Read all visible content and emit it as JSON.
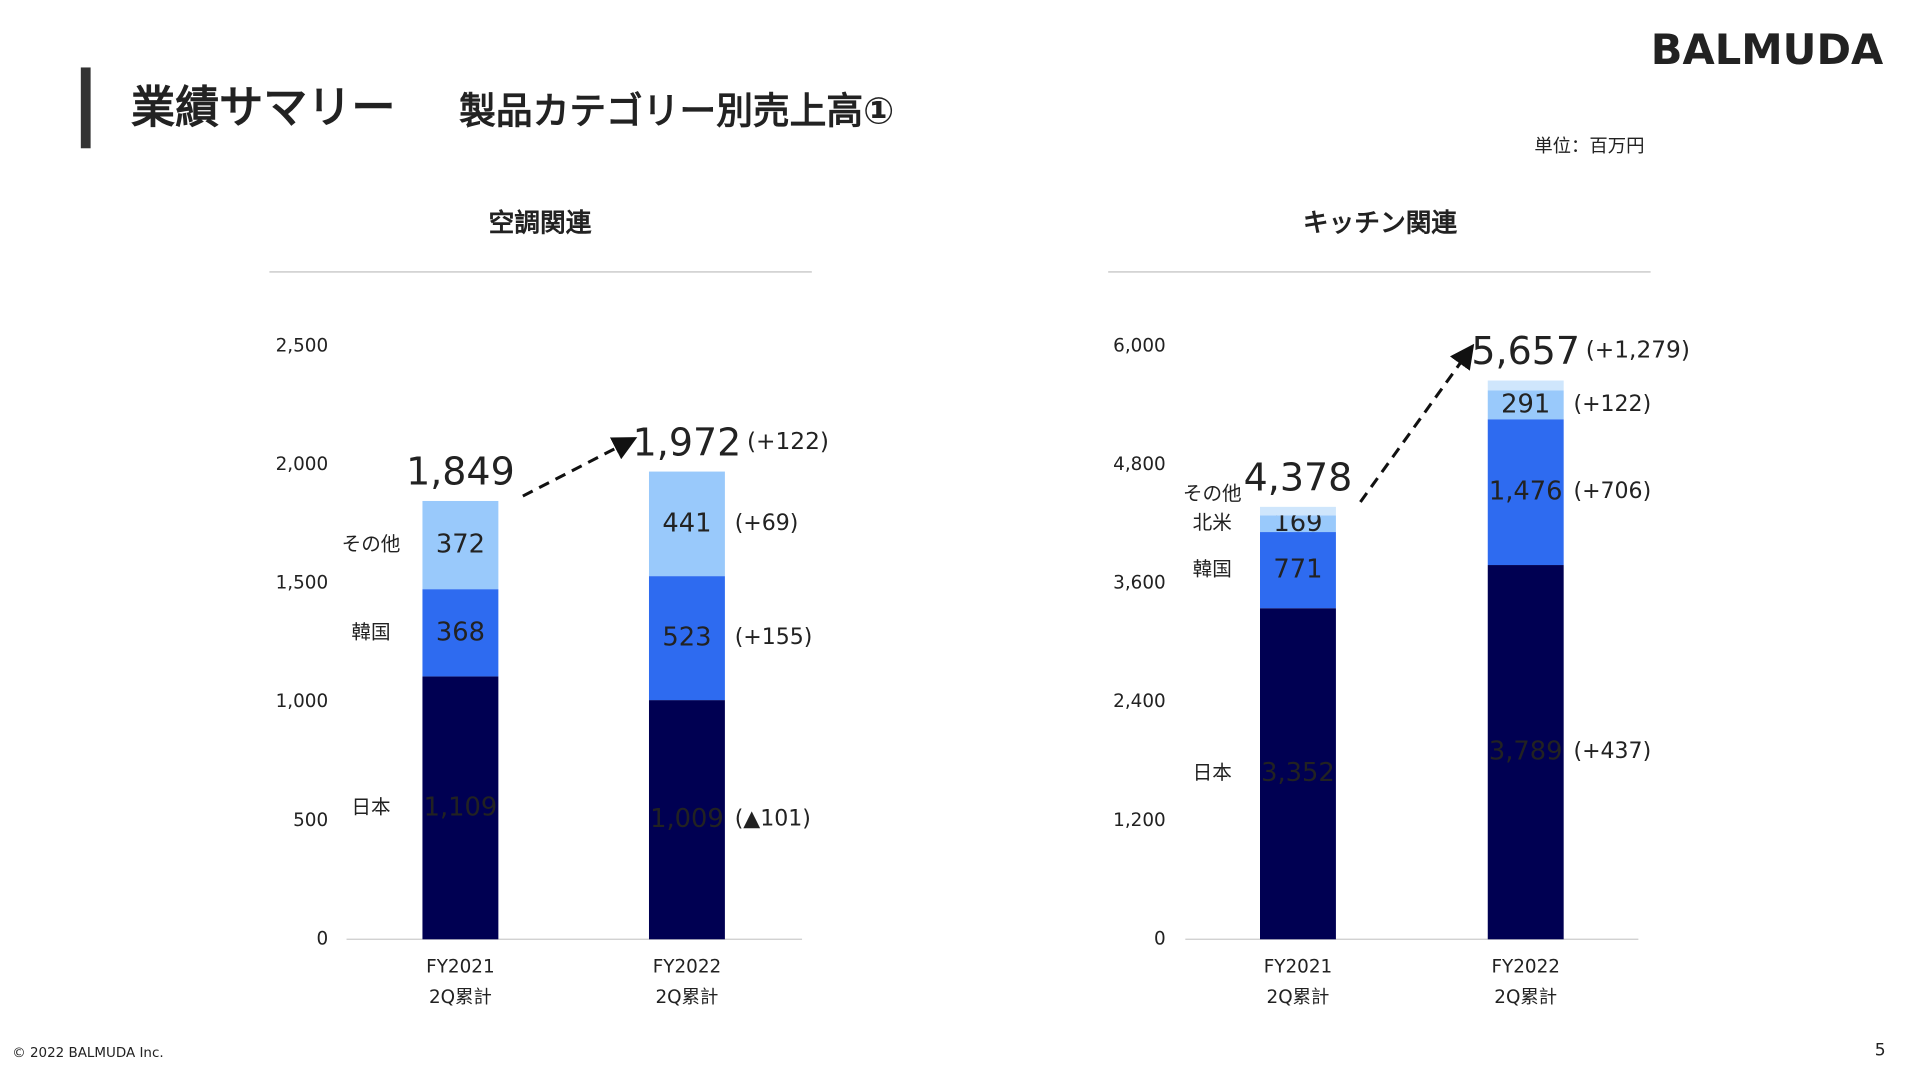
{
  "header": {
    "title": "業績サマリー",
    "subtitle": "製品カテゴリー別売上高①",
    "logo": "BALMUDA",
    "unit": "単位：百万円"
  },
  "footer": {
    "copyright": "© 2022 BALMUDA Inc.",
    "page": "5"
  },
  "chart_data": [
    {
      "type": "stacked-bar",
      "title": "空調関連",
      "categories": [
        [
          "FY2021",
          "2Q累計"
        ],
        [
          "FY2022",
          "2Q累計"
        ]
      ],
      "series": [
        {
          "name": "日本",
          "color": "#000052",
          "values": [
            1109,
            1009
          ],
          "value_labels": [
            "1,109",
            "1,009"
          ],
          "change_labels": [
            null,
            "(▲101)"
          ]
        },
        {
          "name": "韓国",
          "color": "#2e6bf0",
          "values": [
            368,
            523
          ],
          "change_labels": [
            null,
            "(+155)"
          ]
        },
        {
          "name": "その他",
          "color": "#99c9fb",
          "values": [
            372,
            441
          ],
          "change_labels": [
            null,
            "(+69)"
          ]
        }
      ],
      "totals": [
        1849,
        1972
      ],
      "total_labels": [
        "1,849",
        "1,972"
      ],
      "total_change_labels": [
        null,
        "(+122)"
      ],
      "ylim": [
        0,
        2500
      ],
      "yticks": [
        0,
        500,
        {
          "value": 1000,
          "label": "1,000"
        },
        {
          "value": 1500,
          "label": "1,500"
        },
        {
          "value": 2000,
          "label": "2,000"
        },
        {
          "value": 2500,
          "label": "2,500"
        }
      ]
    },
    {
      "type": "stacked-bar",
      "title": "キッチン関連",
      "categories": [
        [
          "FY2021",
          "2Q累計"
        ],
        [
          "FY2022",
          "2Q累計"
        ]
      ],
      "series": [
        {
          "name": "日本",
          "color": "#000052",
          "values": [
            3352,
            3789
          ],
          "value_labels": [
            "3,352",
            "3,789"
          ],
          "change_labels": [
            null,
            "(+437)"
          ]
        },
        {
          "name": "韓国",
          "color": "#2e6bf0",
          "values": [
            771,
            1476
          ],
          "value_labels": [
            "771",
            "1,476"
          ],
          "change_labels": [
            null,
            "(+706)"
          ]
        },
        {
          "name": "北米",
          "color": "#99c9fb",
          "values": [
            169,
            291
          ],
          "change_labels": [
            null,
            "(+122)"
          ]
        },
        {
          "name": "その他",
          "color": "#cfe6fc",
          "values": [
            86,
            101
          ]
        }
      ],
      "totals": [
        4378,
        5657
      ],
      "total_labels": [
        "4,378",
        "5,657"
      ],
      "total_change_labels": [
        null,
        "(+1,279)"
      ],
      "ylim": [
        0,
        6000
      ],
      "yticks": [
        0,
        {
          "value": 1200,
          "label": "1,200"
        },
        {
          "value": 2400,
          "label": "2,400"
        },
        {
          "value": 3600,
          "label": "3,600"
        },
        {
          "value": 4800,
          "label": "4,800"
        },
        {
          "value": 6000,
          "label": "6,000"
        }
      ]
    }
  ]
}
